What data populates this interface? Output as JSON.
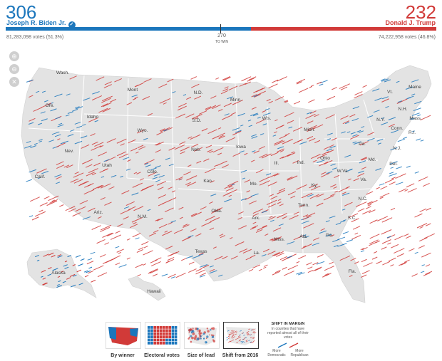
{
  "header": {
    "dem": {
      "count": "306",
      "name": "Joseph R. Biden Jr.",
      "votes": "81,283,098 votes (51.3%)",
      "color": "#1b76bc",
      "check": "✓"
    },
    "rep": {
      "count": "232",
      "name": "Donald J. Trump",
      "votes": "74,222,958 votes (46.8%)",
      "color": "#d13a38"
    },
    "dem_share": 0.569,
    "to_win_value": "270",
    "to_win_label": "TO WIN"
  },
  "zoom_controls": {
    "zoom_in": "⊕",
    "zoom_out": "⊖",
    "reset": "✕"
  },
  "states": [
    {
      "id": "wash",
      "label": "Wash."
    },
    {
      "id": "ore",
      "label": "Ore."
    },
    {
      "id": "idaho",
      "label": "Idaho"
    },
    {
      "id": "mont",
      "label": "Mont"
    },
    {
      "id": "wyo",
      "label": "Wyo."
    },
    {
      "id": "nev",
      "label": "Nev."
    },
    {
      "id": "calif",
      "label": "Calif."
    },
    {
      "id": "utah",
      "label": "Utah"
    },
    {
      "id": "colo",
      "label": "Colo."
    },
    {
      "id": "ariz",
      "label": "Ariz."
    },
    {
      "id": "nm",
      "label": "N.M."
    },
    {
      "id": "nd",
      "label": "N.D."
    },
    {
      "id": "sd",
      "label": "S.D."
    },
    {
      "id": "neb",
      "label": "Neb."
    },
    {
      "id": "kan",
      "label": "Kan."
    },
    {
      "id": "okla",
      "label": "Okla."
    },
    {
      "id": "texas",
      "label": "Texas"
    },
    {
      "id": "minn",
      "label": "Minn."
    },
    {
      "id": "iowa",
      "label": "Iowa"
    },
    {
      "id": "mo",
      "label": "Mo."
    },
    {
      "id": "ark",
      "label": "Ark."
    },
    {
      "id": "la",
      "label": "La."
    },
    {
      "id": "wis",
      "label": "Wis."
    },
    {
      "id": "ill",
      "label": "Ill."
    },
    {
      "id": "mich",
      "label": "Mich."
    },
    {
      "id": "ind",
      "label": "Ind."
    },
    {
      "id": "ohio",
      "label": "Ohio"
    },
    {
      "id": "ky",
      "label": "Ky."
    },
    {
      "id": "tenn",
      "label": "Tenn."
    },
    {
      "id": "miss",
      "label": "Miss."
    },
    {
      "id": "ala",
      "label": "Ala."
    },
    {
      "id": "ga",
      "label": "Ga."
    },
    {
      "id": "fla",
      "label": "Fla."
    },
    {
      "id": "sc",
      "label": "S.C."
    },
    {
      "id": "nc",
      "label": "N.C."
    },
    {
      "id": "va",
      "label": "Va."
    },
    {
      "id": "wva",
      "label": "W.Va."
    },
    {
      "id": "md",
      "label": "Md."
    },
    {
      "id": "del",
      "label": "Del."
    },
    {
      "id": "pa",
      "label": "Pa."
    },
    {
      "id": "nj",
      "label": "N.J."
    },
    {
      "id": "ny",
      "label": "N.Y."
    },
    {
      "id": "conn",
      "label": "Conn."
    },
    {
      "id": "ri",
      "label": "R.I."
    },
    {
      "id": "mass",
      "label": "Mass."
    },
    {
      "id": "vt",
      "label": "Vt."
    },
    {
      "id": "nh",
      "label": "N.H."
    },
    {
      "id": "maine",
      "label": "Maine"
    },
    {
      "id": "alaska",
      "label": "Alaska"
    },
    {
      "id": "hawaii",
      "label": "Hawaii"
    }
  ],
  "view_options": [
    {
      "id": "by-winner",
      "label": "By winner",
      "selected": false
    },
    {
      "id": "electoral-votes",
      "label": "Electoral votes",
      "selected": false
    },
    {
      "id": "size-of-lead",
      "label": "Size of lead",
      "selected": false
    },
    {
      "id": "shift-from-2016",
      "label": "Shift from 2016",
      "selected": true
    }
  ],
  "legend": {
    "title": "SHIFT IN MARGIN",
    "subtitle": "In counties that have reported almost all of their votes",
    "dem_label": "More Democratic",
    "rep_label": "More Republican"
  },
  "colors": {
    "dem": "#1b76bc",
    "rep": "#d13a38",
    "land": "#e3e3e3",
    "border": "#ffffff"
  }
}
